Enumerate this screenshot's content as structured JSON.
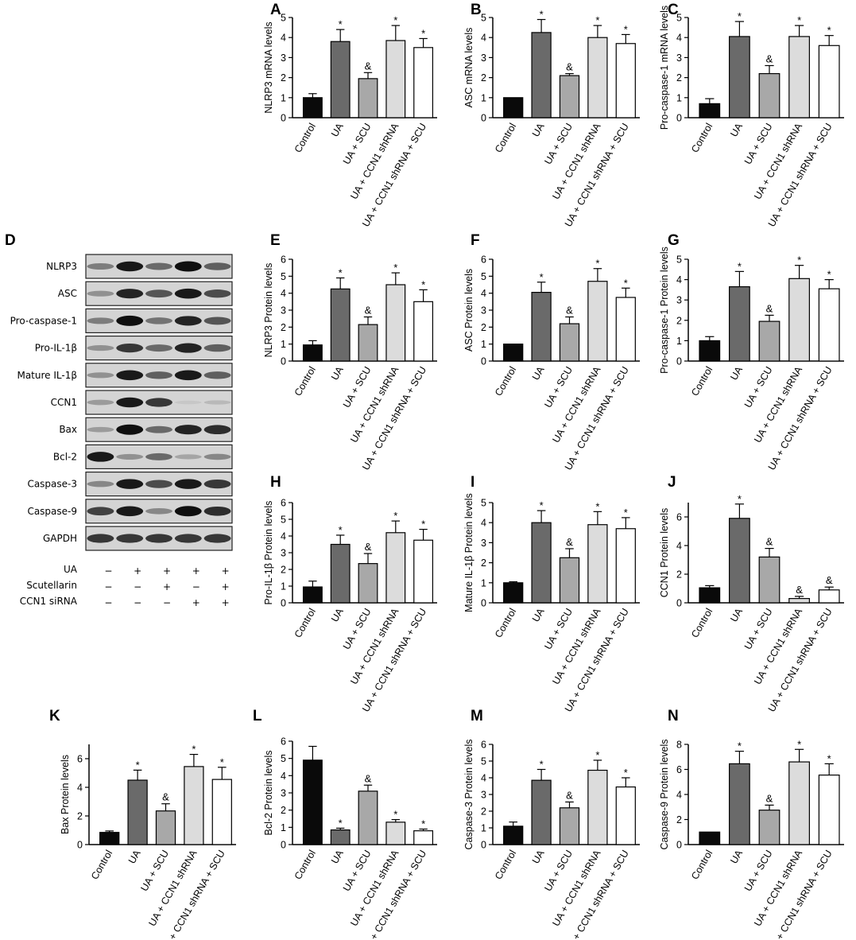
{
  "categories": [
    "Control",
    "UA",
    "UA + SCU",
    "UA + CCN1 shRNA",
    "UA + CCN1 shRNA + SCU"
  ],
  "bar_colors": [
    "#0a0a0a",
    "#6a6a6a",
    "#a8a8a8",
    "#dcdcdc",
    "#ffffff"
  ],
  "chart_data": [
    {
      "label": "A",
      "type": "bar",
      "ylabel": "NLRP3 mRNA levels",
      "ylim": [
        0,
        5
      ],
      "yticks": [
        0,
        1,
        2,
        3,
        4,
        5
      ],
      "values": [
        1.0,
        3.8,
        1.95,
        3.85,
        3.5
      ],
      "errors": [
        0.2,
        0.6,
        0.3,
        0.75,
        0.45
      ],
      "marks": [
        "",
        "*",
        "&",
        "*",
        "*"
      ]
    },
    {
      "label": "B",
      "type": "bar",
      "ylabel": "ASC mRNA levels",
      "ylim": [
        0,
        5
      ],
      "yticks": [
        0,
        1,
        2,
        3,
        4,
        5
      ],
      "values": [
        1.0,
        4.25,
        2.1,
        4.0,
        3.7
      ],
      "errors": [
        0.0,
        0.65,
        0.1,
        0.6,
        0.45
      ],
      "marks": [
        "",
        "*",
        "&",
        "*",
        "*"
      ]
    },
    {
      "label": "C",
      "type": "bar",
      "ylabel": "Pro-caspase-1 mRNA levels",
      "ylim": [
        0,
        5
      ],
      "yticks": [
        0,
        1,
        2,
        3,
        4,
        5
      ],
      "values": [
        0.7,
        4.05,
        2.2,
        4.05,
        3.6
      ],
      "errors": [
        0.25,
        0.75,
        0.4,
        0.55,
        0.5
      ],
      "marks": [
        "",
        "*",
        "&",
        "*",
        "*"
      ]
    },
    {
      "label": "E",
      "type": "bar",
      "ylabel": "NLRP3 Protein levels",
      "ylim": [
        0,
        6
      ],
      "yticks": [
        0,
        1,
        2,
        3,
        4,
        5,
        6
      ],
      "values": [
        0.95,
        4.25,
        2.15,
        4.5,
        3.5
      ],
      "errors": [
        0.25,
        0.65,
        0.45,
        0.7,
        0.7
      ],
      "marks": [
        "",
        "*",
        "&",
        "*",
        "*"
      ]
    },
    {
      "label": "F",
      "type": "bar",
      "ylabel": "ASC Protein levels",
      "ylim": [
        0,
        6
      ],
      "yticks": [
        0,
        1,
        2,
        3,
        4,
        5,
        6
      ],
      "values": [
        1.0,
        4.05,
        2.2,
        4.7,
        3.75
      ],
      "errors": [
        0.0,
        0.6,
        0.4,
        0.75,
        0.55
      ],
      "marks": [
        "",
        "*",
        "&",
        "*",
        "*"
      ]
    },
    {
      "label": "G",
      "type": "bar",
      "ylabel": "Pro-caspase-1 Protein levels",
      "ylim": [
        0,
        5
      ],
      "yticks": [
        0,
        1,
        2,
        3,
        4,
        5
      ],
      "values": [
        1.0,
        3.65,
        1.95,
        4.05,
        3.55
      ],
      "errors": [
        0.2,
        0.75,
        0.3,
        0.65,
        0.45
      ],
      "marks": [
        "",
        "*",
        "&",
        "*",
        "*"
      ]
    },
    {
      "label": "H",
      "type": "bar",
      "ylabel": "Pro-IL-1β Protein levels",
      "ylim": [
        0,
        6
      ],
      "yticks": [
        0,
        1,
        2,
        3,
        4,
        5,
        6
      ],
      "values": [
        0.95,
        3.5,
        2.35,
        4.2,
        3.75
      ],
      "errors": [
        0.35,
        0.55,
        0.6,
        0.7,
        0.65
      ],
      "marks": [
        "",
        "*",
        "&",
        "*",
        "*"
      ]
    },
    {
      "label": "I",
      "type": "bar",
      "ylabel": "Mature IL-1β Protein levels",
      "ylim": [
        0,
        5
      ],
      "yticks": [
        0,
        1,
        2,
        3,
        4,
        5
      ],
      "values": [
        1.0,
        4.0,
        2.25,
        3.9,
        3.7
      ],
      "errors": [
        0.05,
        0.6,
        0.45,
        0.65,
        0.55
      ],
      "marks": [
        "",
        "*",
        "&",
        "*",
        "*"
      ]
    },
    {
      "label": "J",
      "type": "bar",
      "ylabel": "CCN1 Protein levels",
      "ylim": [
        0,
        7
      ],
      "yticks": [
        0,
        2,
        4,
        6
      ],
      "values": [
        1.05,
        5.9,
        3.2,
        0.3,
        0.9
      ],
      "errors": [
        0.15,
        1.0,
        0.6,
        0.15,
        0.2
      ],
      "marks": [
        "",
        "*",
        "&",
        "&",
        "&"
      ]
    },
    {
      "label": "K",
      "type": "bar",
      "ylabel": "Bax Protein levels",
      "ylim": [
        0,
        7
      ],
      "yticks": [
        0,
        2,
        4,
        6
      ],
      "values": [
        0.85,
        4.5,
        2.35,
        5.45,
        4.55
      ],
      "errors": [
        0.1,
        0.7,
        0.5,
        0.85,
        0.85
      ],
      "marks": [
        "",
        "*",
        "&",
        "*",
        "*"
      ]
    },
    {
      "label": "L",
      "type": "bar",
      "ylabel": "Bcl-2 Protein levels",
      "ylim": [
        0,
        6
      ],
      "yticks": [
        0,
        1,
        2,
        3,
        4,
        5,
        6
      ],
      "values": [
        4.9,
        0.85,
        3.1,
        1.3,
        0.8
      ],
      "errors": [
        0.8,
        0.1,
        0.35,
        0.15,
        0.1
      ],
      "marks": [
        "",
        "*",
        "&",
        "*",
        "*"
      ]
    },
    {
      "label": "M",
      "type": "bar",
      "ylabel": "Caspase-3 Protein levels",
      "ylim": [
        0,
        6
      ],
      "yticks": [
        0,
        1,
        2,
        3,
        4,
        5,
        6
      ],
      "values": [
        1.1,
        3.85,
        2.2,
        4.45,
        3.45
      ],
      "errors": [
        0.25,
        0.65,
        0.35,
        0.6,
        0.55
      ],
      "marks": [
        "",
        "*",
        "&",
        "*",
        "*"
      ]
    },
    {
      "label": "N",
      "type": "bar",
      "ylabel": "Caspase-9 Protein levels",
      "ylim": [
        0,
        8
      ],
      "yticks": [
        0,
        2,
        4,
        6,
        8
      ],
      "values": [
        1.0,
        6.45,
        2.75,
        6.6,
        5.55
      ],
      "errors": [
        0.0,
        1.0,
        0.4,
        1.0,
        0.9
      ],
      "marks": [
        "",
        "*",
        "&",
        "*",
        "*"
      ]
    }
  ],
  "western_blot": {
    "label": "D",
    "rows": [
      {
        "name": "NLRP3",
        "intensity": [
          0.45,
          0.95,
          0.55,
          1.0,
          0.6
        ]
      },
      {
        "name": "ASC",
        "intensity": [
          0.35,
          0.9,
          0.65,
          0.95,
          0.7
        ]
      },
      {
        "name": "Pro-caspase-1",
        "intensity": [
          0.45,
          1.0,
          0.5,
          0.9,
          0.65
        ]
      },
      {
        "name": "Pro-IL-1β",
        "intensity": [
          0.35,
          0.8,
          0.55,
          0.9,
          0.6
        ]
      },
      {
        "name": "Mature IL-1β",
        "intensity": [
          0.35,
          0.95,
          0.6,
          0.95,
          0.6
        ]
      },
      {
        "name": "CCN1",
        "intensity": [
          0.3,
          0.95,
          0.8,
          0.08,
          0.15
        ]
      },
      {
        "name": "Bax",
        "intensity": [
          0.3,
          1.0,
          0.55,
          0.9,
          0.85
        ]
      },
      {
        "name": "Bcl-2",
        "intensity": [
          0.95,
          0.35,
          0.55,
          0.25,
          0.4
        ]
      },
      {
        "name": "Caspase-3",
        "intensity": [
          0.4,
          0.95,
          0.7,
          0.95,
          0.8
        ]
      },
      {
        "name": "Caspase-9",
        "intensity": [
          0.75,
          0.95,
          0.4,
          1.0,
          0.85
        ]
      },
      {
        "name": "GAPDH",
        "intensity": [
          0.8,
          0.8,
          0.8,
          0.8,
          0.8
        ]
      }
    ],
    "treatments": [
      {
        "name": "UA",
        "signs": [
          "−",
          "+",
          "+",
          "+",
          "+"
        ]
      },
      {
        "name": "Scutellarin",
        "signs": [
          "−",
          "−",
          "+",
          "−",
          "+"
        ]
      },
      {
        "name": "CCN1 siRNA",
        "signs": [
          "−",
          "−",
          "−",
          "+",
          "+"
        ]
      }
    ]
  }
}
